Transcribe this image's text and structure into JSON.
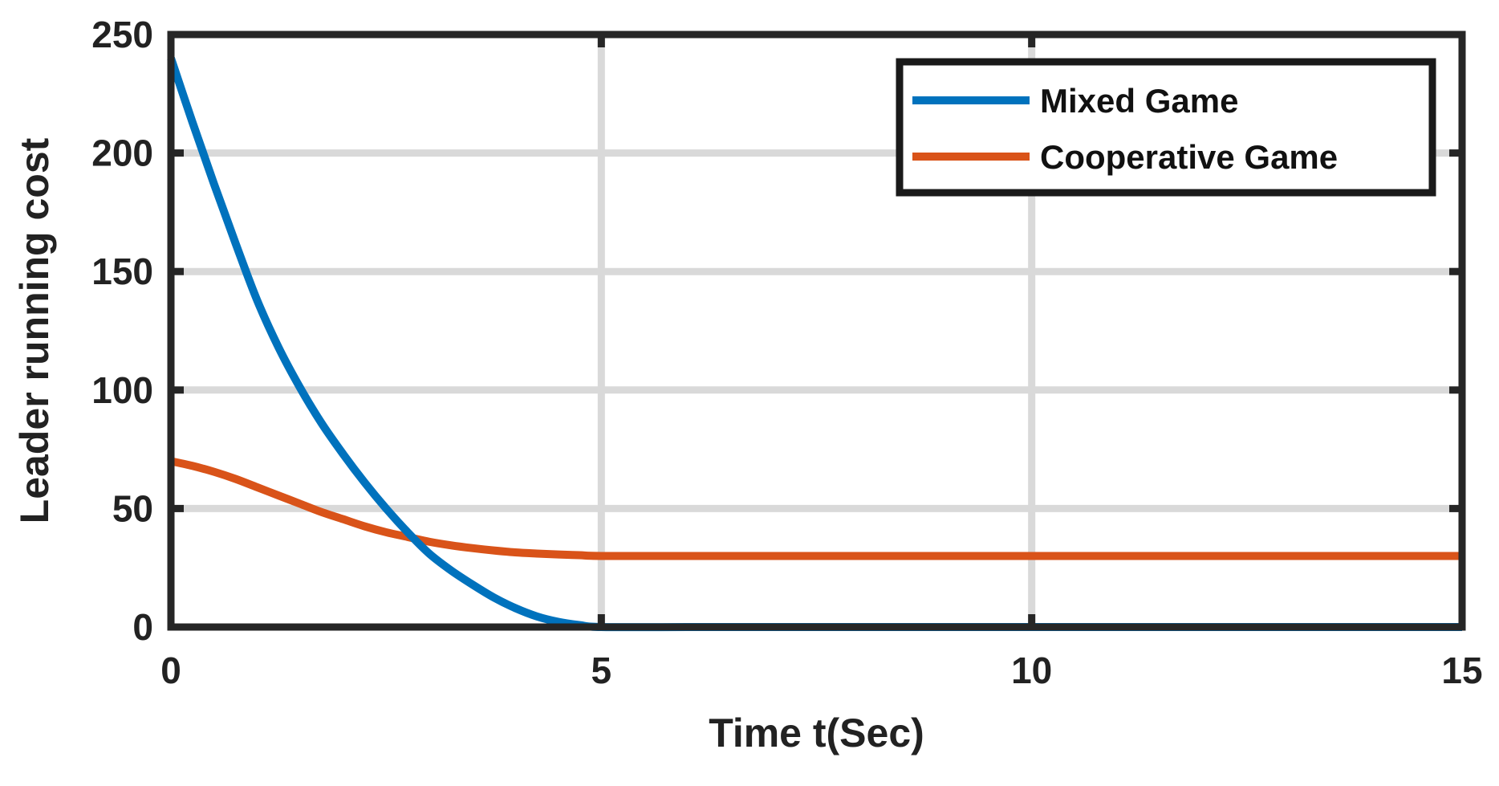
{
  "chart_data": {
    "type": "line",
    "title": "",
    "xlabel": "Time t(Sec)",
    "ylabel": "Leader running cost",
    "xlim": [
      0,
      15
    ],
    "ylim": [
      0,
      250
    ],
    "xticks": [
      0,
      5,
      10,
      15
    ],
    "yticks": [
      0,
      50,
      100,
      150,
      200,
      250
    ],
    "grid": true,
    "legend_position": "top-right",
    "series": [
      {
        "name": "Mixed Game",
        "color": "#0072BD",
        "x": [
          0,
          0.25,
          0.5,
          0.75,
          1,
          1.25,
          1.5,
          1.75,
          2,
          2.25,
          2.5,
          2.75,
          3,
          3.25,
          3.5,
          3.75,
          4,
          4.25,
          4.5,
          4.75,
          5,
          6,
          7,
          8,
          9,
          10,
          11,
          12,
          13,
          14,
          15
        ],
        "y": [
          240,
          213,
          187,
          162,
          138,
          118,
          101,
          86,
          73,
          61,
          50,
          40,
          31,
          24,
          18,
          12.5,
          8,
          4.5,
          2.2,
          0.8,
          0,
          0,
          0,
          0,
          0,
          0,
          0,
          0,
          0,
          0,
          0
        ]
      },
      {
        "name": "Cooperative Game",
        "color": "#D95319",
        "x": [
          0,
          0.25,
          0.5,
          0.75,
          1,
          1.25,
          1.5,
          1.75,
          2,
          2.25,
          2.5,
          2.75,
          3,
          3.25,
          3.5,
          3.75,
          4,
          4.25,
          4.5,
          4.75,
          5,
          6,
          7,
          8,
          9,
          10,
          11,
          12,
          13,
          14,
          15
        ],
        "y": [
          70,
          68,
          65.5,
          62.5,
          59,
          55.5,
          52,
          48.5,
          45.5,
          42.5,
          40,
          38,
          36,
          34.5,
          33.3,
          32.3,
          31.5,
          31,
          30.6,
          30.3,
          30,
          30,
          30,
          30,
          30,
          30,
          30,
          30,
          30,
          30,
          30
        ]
      }
    ]
  }
}
